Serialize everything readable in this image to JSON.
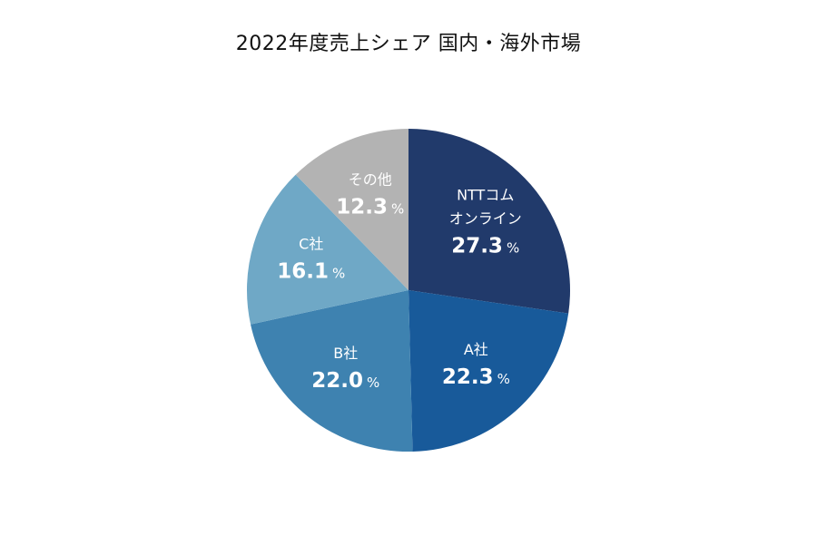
{
  "title": "2022年度売上シェア 国内・海外市場",
  "chart_data": {
    "type": "pie",
    "title": "2022年度売上シェア 国内・海外市場",
    "unit": "%",
    "slices": [
      {
        "label_lines": [
          "NTTコム",
          "オンライン"
        ],
        "value": 27.3,
        "display": "27.3",
        "color": "#213a6b"
      },
      {
        "label_lines": [
          "A社"
        ],
        "value": 22.3,
        "display": "22.3",
        "color": "#185a9a"
      },
      {
        "label_lines": [
          "B社"
        ],
        "value": 22.0,
        "display": "22.0",
        "color": "#3e82b0"
      },
      {
        "label_lines": [
          "C社"
        ],
        "value": 16.1,
        "display": "16.1",
        "color": "#6fa8c6"
      },
      {
        "label_lines": [
          "その他"
        ],
        "value": 12.3,
        "display": "12.3",
        "color": "#b3b3b3"
      }
    ]
  }
}
